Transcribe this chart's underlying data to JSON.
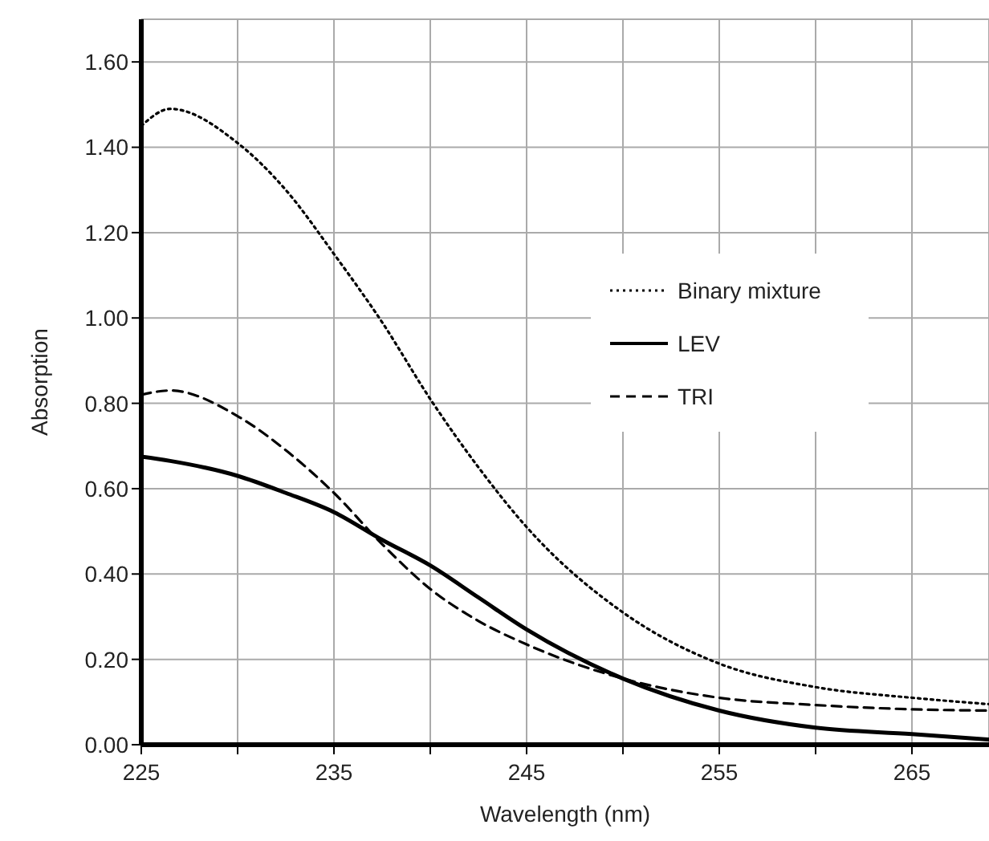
{
  "chart_data": {
    "type": "line",
    "xlabel": "Wavelength (nm)",
    "ylabel": "Absorption",
    "x": [
      225,
      226.5,
      230,
      232.5,
      235,
      237.5,
      240,
      242.5,
      245,
      250,
      255,
      260,
      265,
      269
    ],
    "xlim": [
      225,
      269
    ],
    "xticks": [
      225,
      {
        "value": 230,
        "label": null
      },
      235,
      {
        "value": 240,
        "label": null
      },
      245,
      {
        "value": 250,
        "label": null
      },
      255,
      {
        "value": 260,
        "label": null
      },
      265
    ],
    "ylim": [
      0,
      1.7
    ],
    "yticks": [
      {
        "value": 0,
        "label": "0.00"
      },
      {
        "value": 0.2,
        "label": "0.20"
      },
      {
        "value": 0.4,
        "label": "0.40"
      },
      {
        "value": 0.6,
        "label": "0.60"
      },
      {
        "value": 0.8,
        "label": "0.80"
      },
      {
        "value": 1.0,
        "label": "1.00"
      },
      {
        "value": 1.2,
        "label": "1.20"
      },
      {
        "value": 1.4,
        "label": "1.40"
      },
      {
        "value": 1.6,
        "label": "1.60"
      }
    ],
    "grid": true,
    "legend": "right",
    "marker": "none",
    "series": [
      {
        "name": "Binary mixture",
        "color": "#000000",
        "line_style": "dotted",
        "values": [
          1.45,
          1.49,
          1.41,
          1.3,
          1.15,
          0.99,
          0.81,
          0.65,
          0.51,
          0.31,
          0.19,
          0.135,
          0.11,
          0.095
        ]
      },
      {
        "name": "LEV",
        "color": "#000000",
        "line_style": "solid",
        "values": [
          0.675,
          0.665,
          0.63,
          0.59,
          0.545,
          0.48,
          0.42,
          0.345,
          0.27,
          0.155,
          0.08,
          0.04,
          0.025,
          0.012
        ]
      },
      {
        "name": "TRI",
        "color": "#000000",
        "line_style": "dashed",
        "values": [
          0.82,
          0.83,
          0.77,
          0.69,
          0.59,
          0.47,
          0.365,
          0.29,
          0.235,
          0.155,
          0.11,
          0.093,
          0.083,
          0.08
        ]
      }
    ]
  }
}
